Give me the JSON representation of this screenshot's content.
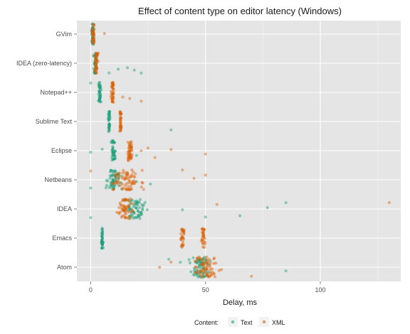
{
  "chart_data": {
    "type": "scatter",
    "title": "Effect of content type on editor latency (Windows)",
    "xlabel": "Delay, ms",
    "ylabel": "",
    "xlim": [
      -6,
      135
    ],
    "xticks": [
      0,
      50,
      100
    ],
    "grid": true,
    "categories": [
      "GVim",
      "IDEA (zero-latency)",
      "Notepad++",
      "Sublime Text",
      "Eclipse",
      "Netbeans",
      "IDEA",
      "Emacs",
      "Atom"
    ],
    "legend": {
      "title": "Content:",
      "position": "bottom",
      "entries": [
        {
          "name": "Text",
          "color": "#1b9e77"
        },
        {
          "name": "XML",
          "color": "#d95f02"
        }
      ]
    },
    "series": [
      {
        "name": "Text",
        "color": "#1b9e77",
        "groups": [
          {
            "category": "GVim",
            "clusters": [
              0.8
            ],
            "spread": 0.8,
            "n": 40,
            "outliers": []
          },
          {
            "category": "IDEA (zero-latency)",
            "clusters": [
              2
            ],
            "spread": 1.0,
            "n": 40,
            "outliers": [
              8,
              12,
              16,
              19,
              22
            ]
          },
          {
            "category": "Notepad++",
            "clusters": [
              4
            ],
            "spread": 0.8,
            "n": 40,
            "outliers": [
              0
            ]
          },
          {
            "category": "Sublime Text",
            "clusters": [
              8
            ],
            "spread": 0.6,
            "n": 35,
            "outliers": [
              35
            ]
          },
          {
            "category": "Eclipse",
            "clusters": [
              10
            ],
            "spread": 1.2,
            "n": 40,
            "outliers": [
              0,
              5,
              20
            ]
          },
          {
            "category": "Netbeans",
            "clusters": [
              10
            ],
            "spread": 4.5,
            "n": 60,
            "outliers": [
              0,
              20,
              26
            ]
          },
          {
            "category": "IDEA",
            "clusters": [
              20
            ],
            "spread": 6,
            "n": 65,
            "outliers": [
              0,
              40,
              50,
              65,
              77,
              85
            ]
          },
          {
            "category": "Emacs",
            "clusters": [
              5
            ],
            "spread": 0.6,
            "n": 40,
            "outliers": []
          },
          {
            "category": "Atom",
            "clusters": [
              48
            ],
            "spread": 7,
            "n": 70,
            "outliers": [
              34,
              39,
              85
            ]
          }
        ]
      },
      {
        "name": "XML",
        "color": "#d95f02",
        "groups": [
          {
            "category": "GVim",
            "clusters": [
              1.2
            ],
            "spread": 0.8,
            "n": 35,
            "outliers": [
              6
            ]
          },
          {
            "category": "IDEA (zero-latency)",
            "clusters": [
              2.5
            ],
            "spread": 1.2,
            "n": 40,
            "outliers": []
          },
          {
            "category": "Notepad++",
            "clusters": [
              9.5
            ],
            "spread": 0.8,
            "n": 40,
            "outliers": [
              14,
              17,
              22
            ]
          },
          {
            "category": "Sublime Text",
            "clusters": [
              13
            ],
            "spread": 0.6,
            "n": 35,
            "outliers": []
          },
          {
            "category": "Eclipse",
            "clusters": [
              17
            ],
            "spread": 1.5,
            "n": 45,
            "outliers": [
              22,
              25,
              28,
              35,
              50
            ]
          },
          {
            "category": "Netbeans",
            "clusters": [
              15
            ],
            "spread": 10,
            "n": 75,
            "outliers": [
              0,
              40,
              45,
              50
            ]
          },
          {
            "category": "IDEA",
            "clusters": [
              15
            ],
            "spread": 5,
            "n": 55,
            "outliers": [
              55,
              130
            ]
          },
          {
            "category": "Emacs",
            "clusters": [
              40,
              49
            ],
            "spread": 1.2,
            "n": 60,
            "outliers": []
          },
          {
            "category": "Atom",
            "clusters": [
              50
            ],
            "spread": 8,
            "n": 70,
            "outliers": [
              30,
              35,
              70
            ]
          }
        ]
      }
    ]
  }
}
